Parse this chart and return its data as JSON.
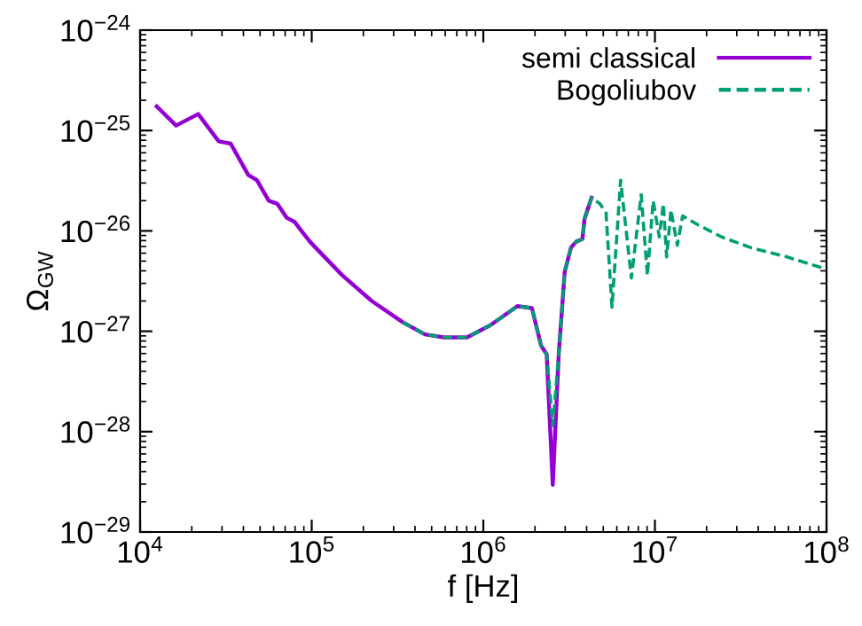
{
  "chart_data": {
    "type": "line",
    "xlabel": "f [Hz]",
    "ylabel": "Ω$_{GW}$",
    "log": "xy",
    "grid": false,
    "legend": "top right",
    "xlim": [
      10000.0,
      100000000.0
    ],
    "ylim": [
      1e-29,
      1e-24
    ],
    "xticks": [
      {
        "value": 10000.0,
        "label": "10$^{4}$"
      },
      {
        "value": 100000.0,
        "label": "10$^{5}$"
      },
      {
        "value": 1000000.0,
        "label": "10$^{6}$"
      },
      {
        "value": 10000000.0,
        "label": "10$^{7}$"
      },
      {
        "value": 100000000.0,
        "label": "10$^{8}$"
      }
    ],
    "yticks": [
      {
        "value": 1e-29,
        "label": "10$^{−29}$"
      },
      {
        "value": 1e-28,
        "label": "10$^{−28}$"
      },
      {
        "value": 1e-27,
        "label": "10$^{−27}$"
      },
      {
        "value": 1e-26,
        "label": "10$^{−26}$"
      },
      {
        "value": 1e-25,
        "label": "10$^{−25}$"
      },
      {
        "value": 1e-24,
        "label": "10$^{−24}$"
      }
    ],
    "series": [
      {
        "name": "semi classical",
        "color": "#9400d3",
        "line_style": "solid",
        "x": [
          12500.0,
          16200.0,
          21800.0,
          28700.0,
          33700.0,
          42700.0,
          47900.0,
          56200.0,
          63100.0,
          71600.0,
          79400.0,
          87100.0,
          97700.0,
          110000.0,
          151000.0,
          224000.0,
          339000.0,
          457000.0,
          589000.0,
          804000.0,
          1100000.0,
          1580000.0,
          1920000.0,
          2170000.0,
          2340000.0,
          2540000.0,
          2750000.0,
          2980000.0,
          3240000.0,
          3470000.0,
          3780000.0,
          3890000.0,
          4270000.0
        ],
        "values": [
          1.74e-25,
          1.12e-25,
          1.46e-25,
          7.8e-26,
          7.4e-26,
          3.6e-26,
          3.2e-26,
          2e-26,
          1.86e-26,
          1.35e-26,
          1.23e-26,
          1e-26,
          7.8e-27,
          6.3e-27,
          3.6e-27,
          2e-27,
          1.23e-27,
          9.3e-28,
          8.7e-28,
          8.7e-28,
          1.15e-27,
          1.78e-27,
          1.7e-27,
          7.2e-28,
          5.9e-28,
          2.95e-29,
          5.9e-28,
          3.9e-27,
          6.8e-27,
          7.8e-27,
          8.3e-27,
          1.32e-26,
          2.14e-26
        ]
      },
      {
        "name": "Bogoliubov",
        "color": "#009e73",
        "line_style": "dashed",
        "x": [
          339000.0,
          457000.0,
          589000.0,
          804000.0,
          1100000.0,
          1580000.0,
          1920000.0,
          2170000.0,
          2340000.0,
          2540000.0,
          2750000.0,
          2980000.0,
          3240000.0,
          3470000.0,
          3780000.0,
          3890000.0,
          4270000.0,
          4790000.0,
          5190000.0,
          5620000.0,
          6310000.0,
          7290000.0,
          8320000.0,
          9040000.0,
          9770000.0,
          10600000.0,
          11200000.0,
          11700000.0,
          12400000.0,
          13500000.0,
          14500000.0,
          17800000.0,
          24500000.0,
          36300000.0,
          58900000.0,
          97700000.0
        ],
        "values": [
          1.23e-27,
          9.3e-28,
          8.7e-28,
          8.7e-28,
          1.15e-27,
          1.78e-27,
          1.7e-27,
          7.2e-28,
          5.9e-28,
          1.15e-28,
          5.9e-28,
          3.9e-27,
          6.8e-27,
          7.8e-27,
          8.3e-27,
          1.32e-26,
          2.14e-26,
          1.86e-26,
          1.51e-26,
          1.74e-27,
          3.2e-26,
          3.4e-27,
          2.3e-26,
          3.6e-27,
          2e-26,
          8.7e-27,
          1.86e-26,
          5.5e-27,
          1.62e-26,
          7.2e-27,
          1.41e-26,
          1.15e-26,
          8.7e-27,
          6.8e-27,
          5.5e-27,
          4.2e-27
        ]
      }
    ]
  }
}
